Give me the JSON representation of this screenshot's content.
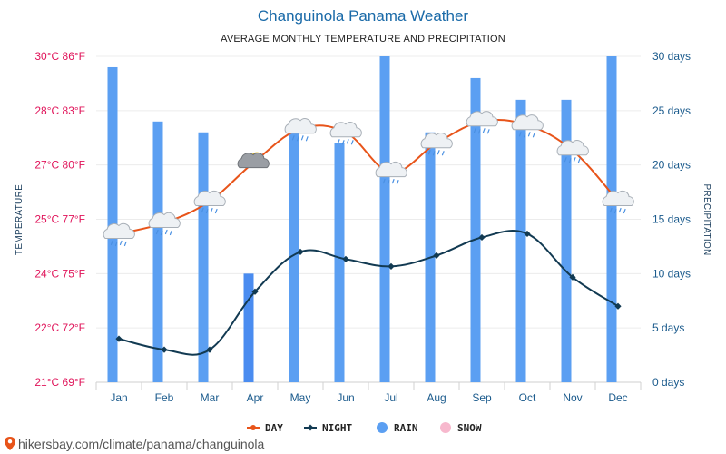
{
  "header": {
    "title": "Changuinola Panama Weather",
    "subtitle": "AVERAGE MONTHLY TEMPERATURE AND PRECIPITATION"
  },
  "source": {
    "text": "hikersbay.com/climate/panama/changuinola"
  },
  "chart_data": {
    "type": "line",
    "categories": [
      "Jan",
      "Feb",
      "Mar",
      "Apr",
      "May",
      "Jun",
      "Jul",
      "Aug",
      "Sep",
      "Oct",
      "Nov",
      "Dec"
    ],
    "ylabel_left": "TEMPERATURE",
    "ylabel_right": "PRECIPITATION",
    "yticks_left": [
      {
        "value": 21,
        "label": "21°C 69°F"
      },
      {
        "value": 22.5,
        "label": "22°C 72°F"
      },
      {
        "value": 24,
        "label": "24°C 75°F"
      },
      {
        "value": 25.5,
        "label": "25°C 77°F"
      },
      {
        "value": 27,
        "label": "27°C 80°F"
      },
      {
        "value": 28.5,
        "label": "28°C 83°F"
      },
      {
        "value": 30,
        "label": "30°C 86°F"
      }
    ],
    "yticks_right": [
      {
        "value": 0,
        "label": "0 days"
      },
      {
        "value": 5,
        "label": "5 days"
      },
      {
        "value": 10,
        "label": "10 days"
      },
      {
        "value": 15,
        "label": "15 days"
      },
      {
        "value": 20,
        "label": "20 days"
      },
      {
        "value": 25,
        "label": "25 days"
      },
      {
        "value": 30,
        "label": "30 days"
      }
    ],
    "ylim_left": [
      21,
      30
    ],
    "ylim_right": [
      0,
      30
    ],
    "grid": true,
    "legend_position": "bottom",
    "series": [
      {
        "name": "DAY",
        "kind": "line",
        "axis": "left",
        "color": "#e8541a",
        "values": [
          25.1,
          25.4,
          26.0,
          27.1,
          28.0,
          27.9,
          26.8,
          27.6,
          28.2,
          28.1,
          27.4,
          26.0
        ]
      },
      {
        "name": "NIGHT",
        "kind": "line",
        "axis": "left",
        "color": "#123a52",
        "values": [
          22.2,
          21.9,
          21.9,
          23.5,
          24.6,
          24.4,
          24.2,
          24.5,
          25.0,
          25.1,
          23.9,
          23.1
        ]
      },
      {
        "name": "RAIN",
        "kind": "bar",
        "axis": "right",
        "color": "#5b9ff2",
        "values": [
          29,
          24,
          23,
          10,
          23,
          22,
          30,
          23,
          28,
          26,
          26,
          30
        ]
      },
      {
        "name": "SNOW",
        "kind": "bar",
        "axis": "right",
        "color": "#f7b8cd",
        "values": [
          0,
          0,
          0,
          0,
          0,
          0,
          0,
          0,
          0,
          0,
          0,
          0
        ]
      }
    ],
    "weather_icons": [
      "rain-cloud-icon",
      "rain-cloud-icon",
      "rain-cloud-icon",
      "partly-sunny-icon",
      "rain-cloud-icon",
      "rain-cloud-icon",
      "rain-cloud-icon",
      "rain-cloud-icon",
      "rain-cloud-icon",
      "rain-cloud-icon",
      "rain-cloud-icon",
      "rain-cloud-icon"
    ]
  }
}
